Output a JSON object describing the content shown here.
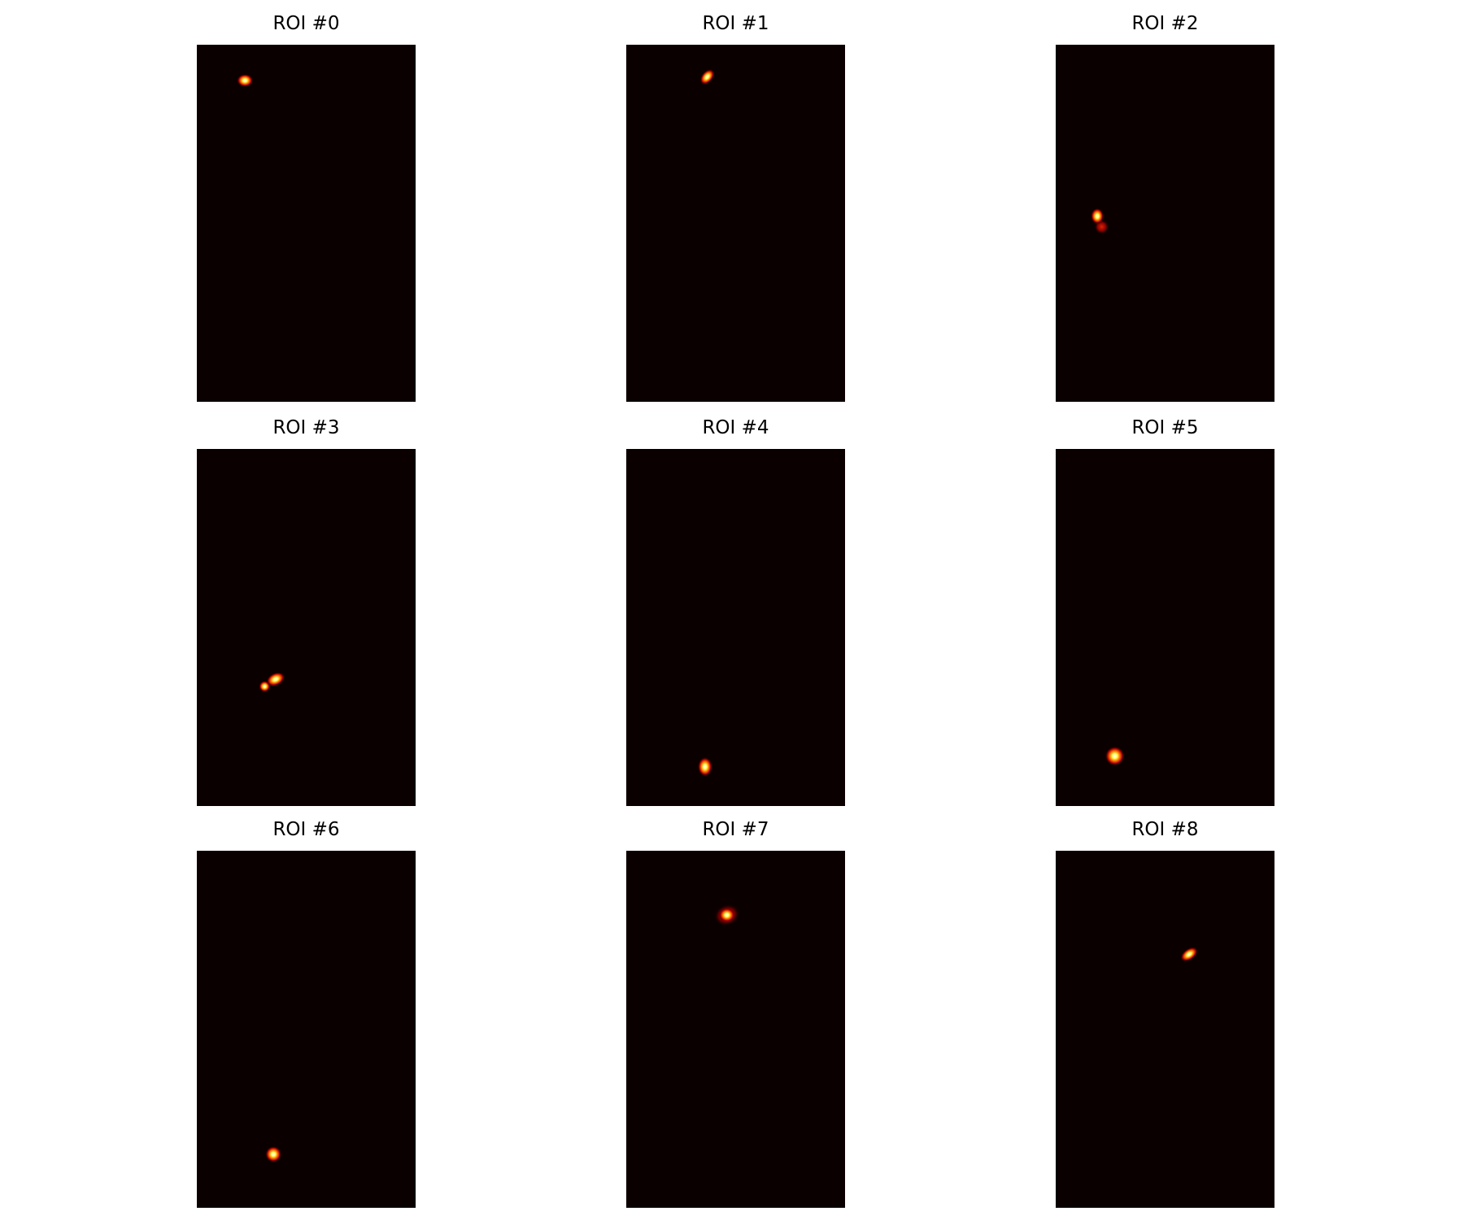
{
  "panels": [
    {
      "title": "ROI #0"
    },
    {
      "title": "ROI #1"
    },
    {
      "title": "ROI #2"
    },
    {
      "title": "ROI #3"
    },
    {
      "title": "ROI #4"
    },
    {
      "title": "ROI #5"
    },
    {
      "title": "ROI #6"
    },
    {
      "title": "ROI #7"
    },
    {
      "title": "ROI #8"
    }
  ]
}
